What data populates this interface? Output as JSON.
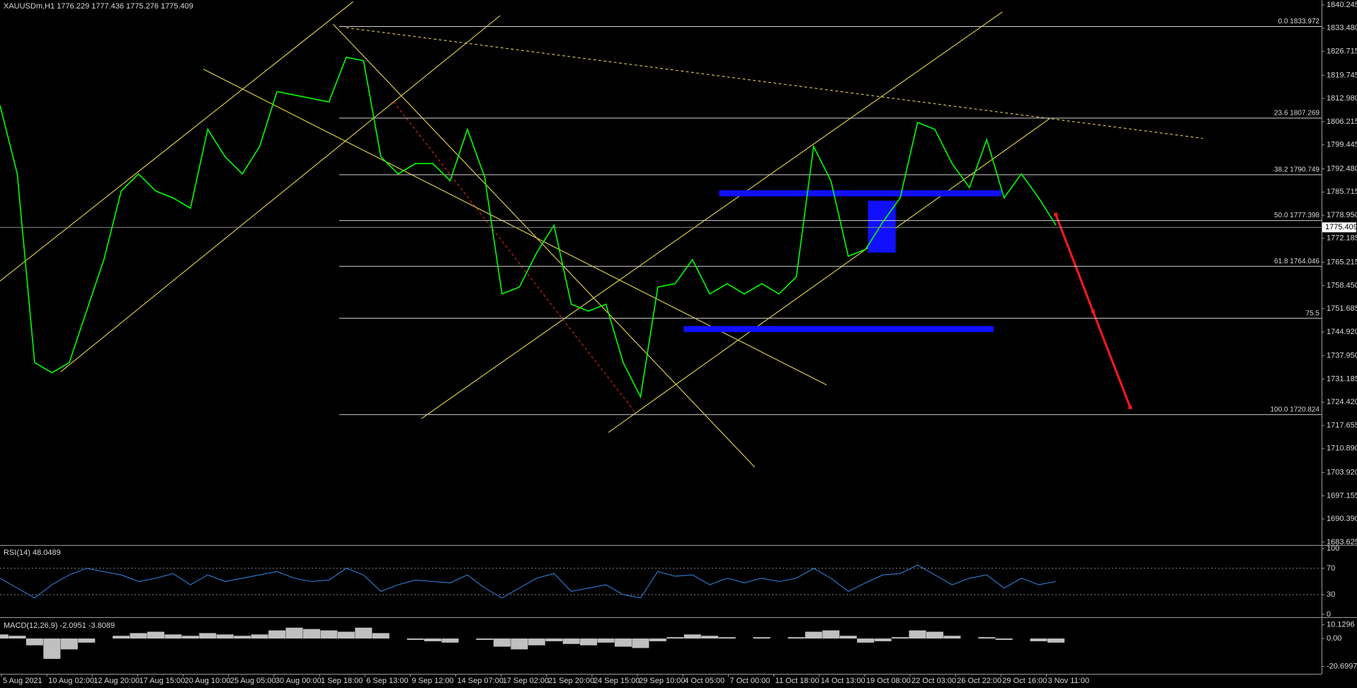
{
  "chart_data": [
    {
      "type": "line",
      "title": "XAUUSDm,H1  1776.229 1777.436 1775.276 1775.409",
      "color": "#00ff00",
      "values": [
        1811,
        1791,
        1736,
        1733,
        1736,
        1751,
        1766,
        1786,
        1791,
        1786,
        1784,
        1781,
        1804,
        1796,
        1791,
        1799,
        1815,
        1814,
        1813,
        1812,
        1825,
        1824,
        1796,
        1791,
        1794,
        1794,
        1789,
        1804,
        1790,
        1756,
        1758,
        1768,
        1776,
        1753,
        1751,
        1753,
        1736,
        1726,
        1758,
        1759,
        1766,
        1756,
        1759,
        1756,
        1759,
        1756,
        1761,
        1799,
        1789,
        1767,
        1769,
        1777,
        1784,
        1806,
        1804,
        1794,
        1787,
        1801,
        1784,
        1791,
        1784,
        1776
      ],
      "ylim": [
        1683.2,
        1841.7
      ],
      "yticks": [
        1840.245,
        {
          "value": 1833.48,
          "label": "1833.480"
        },
        1826.715,
        1819.745,
        {
          "value": 1812.98,
          "label": "1812.980"
        },
        1806.215,
        1799.445,
        {
          "value": 1792.48,
          "label": "1792.480"
        },
        1785.715,
        {
          "value": 1778.95,
          "label": "1778.950"
        },
        1772.185,
        1765.215,
        {
          "value": 1758.45,
          "label": "1758.450"
        },
        1751.685,
        {
          "value": 1744.92,
          "label": "1744.920"
        },
        {
          "value": 1737.95,
          "label": "1737.950"
        },
        1731.185,
        {
          "value": 1724.42,
          "label": "1724.420"
        },
        1717.655,
        {
          "value": 1710.89,
          "label": "1710.890"
        },
        {
          "value": 1703.92,
          "label": "1703.920"
        },
        1697.155,
        {
          "value": 1690.39,
          "label": "1690.390"
        },
        1683.625
      ],
      "fib_levels": [
        {
          "label": "0.0 1833.972",
          "value": 1833.972
        },
        {
          "label": "23.6 1807.269",
          "value": 1807.269
        },
        {
          "label": "38.2 1790.749",
          "value": 1790.749
        },
        {
          "label": "50.0 1777.398",
          "value": 1777.398
        },
        {
          "label": "61.8 1764.046",
          "value": 1764.046
        },
        {
          "label": "75.5",
          "value": 1748.9
        },
        {
          "label": "100.0 1720.824",
          "value": 1720.824
        }
      ],
      "last_price": 1775.409
    },
    {
      "type": "line",
      "title": "RSI(14) 48.0489",
      "color": "#2f7fd6",
      "values": [
        55,
        40,
        25,
        45,
        60,
        70,
        65,
        60,
        50,
        55,
        62,
        45,
        60,
        50,
        55,
        60,
        65,
        55,
        50,
        52,
        70,
        60,
        35,
        45,
        52,
        50,
        48,
        60,
        40,
        25,
        40,
        55,
        62,
        35,
        40,
        45,
        30,
        25,
        65,
        58,
        60,
        45,
        55,
        48,
        55,
        50,
        55,
        70,
        55,
        35,
        48,
        60,
        62,
        75,
        60,
        45,
        55,
        60,
        40,
        55,
        45,
        50
      ],
      "ylim": [
        0,
        100
      ],
      "yticks": [
        100,
        70,
        30,
        0
      ],
      "grid": true
    },
    {
      "type": "bar",
      "title": "MACD(12,26,9) -2.0951 -3.8089",
      "color": "#c0c0c0",
      "values": [
        3,
        2,
        -5,
        -15,
        -8,
        -3,
        0,
        2,
        4,
        5,
        3,
        2,
        4,
        3,
        2,
        3,
        6,
        8,
        7,
        6,
        5,
        8,
        4,
        0,
        -1,
        -2,
        -3,
        0,
        -1,
        -6,
        -8,
        -5,
        -2,
        -4,
        -5,
        -3,
        -6,
        -7,
        -2,
        1,
        3,
        2,
        1,
        0,
        1,
        0,
        1,
        5,
        6,
        2,
        -3,
        -2,
        1,
        6,
        5,
        2,
        0,
        1,
        -1,
        0,
        -2,
        -3
      ],
      "ylim": [
        -25.0,
        13.1
      ],
      "yticks": [
        10.1296,
        {
          "value": 0,
          "label": "0.00"
        },
        -20.6997
      ]
    }
  ],
  "time_axis": {
    "labels": [
      "5 Aug 2021",
      "10 Aug 02:00",
      "12 Aug 20:00",
      "17 Aug 15:00",
      "20 Aug 10:00",
      "25 Aug 05:00",
      "30 Aug 00:00",
      "1 Sep 18:00",
      "6 Sep 13:00",
      "9 Sep 12:00",
      "14 Sep 07:00",
      "17 Sep 02:00",
      "21 Sep 20:00",
      "24 Sep 15:00",
      "29 Sep 10:00",
      "4 Oct 05:00",
      "7 Oct 00:00",
      "11 Oct 18:00",
      "14 Oct 13:00",
      "19 Oct 08:00",
      "22 Oct 03:00",
      "26 Oct 22:00",
      "29 Oct 16:00",
      "3 Nov 11:00"
    ]
  }
}
